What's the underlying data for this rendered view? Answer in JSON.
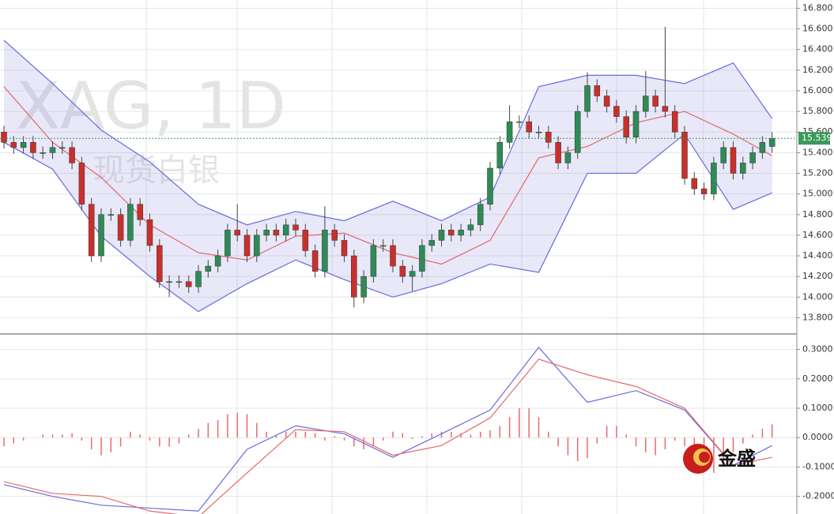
{
  "chart_data": [
    {
      "type": "candlestick",
      "watermark": "XAG, 1D",
      "watermark_sub": "现货白银",
      "up_color": "#2e8b57",
      "down_color": "#c9302c",
      "open": [
        15.6,
        15.5,
        15.45,
        15.5,
        15.4,
        15.4,
        15.45,
        15.45,
        15.3,
        14.9,
        14.4,
        14.8,
        14.8,
        14.55,
        14.9,
        14.75,
        14.5,
        14.15,
        14.15,
        14.15,
        14.1,
        14.25,
        14.3,
        14.4,
        14.65,
        14.6,
        14.4,
        14.6,
        14.65,
        14.6,
        14.7,
        14.65,
        14.45,
        14.25,
        14.65,
        14.55,
        14.4,
        14.0,
        14.2,
        14.5,
        14.5,
        14.3,
        14.2,
        14.25,
        14.5,
        14.55,
        14.65,
        14.6,
        14.65,
        14.7,
        14.9,
        15.25,
        15.5,
        15.7,
        15.7,
        15.6,
        15.6,
        15.5,
        15.3,
        15.4,
        15.8,
        16.05,
        15.95,
        15.85,
        15.75,
        15.55,
        15.8,
        15.95,
        15.85,
        15.8,
        15.6,
        15.15,
        15.05,
        15.0,
        15.3,
        15.45,
        15.2,
        15.3,
        15.4,
        15.46
      ],
      "high": [
        15.66,
        15.56,
        15.56,
        15.56,
        15.46,
        15.51,
        15.51,
        15.51,
        15.36,
        14.96,
        14.86,
        14.86,
        14.86,
        14.96,
        14.96,
        14.81,
        14.56,
        14.21,
        14.21,
        14.21,
        14.31,
        14.36,
        14.46,
        14.71,
        14.9,
        14.66,
        14.66,
        14.71,
        14.71,
        14.76,
        14.76,
        14.71,
        14.51,
        14.88,
        14.71,
        14.61,
        14.46,
        14.26,
        14.56,
        14.56,
        14.56,
        14.36,
        14.31,
        14.56,
        14.61,
        14.71,
        14.71,
        14.71,
        14.76,
        14.96,
        15.31,
        15.56,
        15.86,
        15.76,
        15.76,
        15.66,
        15.66,
        15.56,
        15.46,
        15.86,
        16.18,
        16.11,
        16.01,
        15.91,
        15.81,
        15.86,
        16.19,
        16.01,
        16.62,
        15.86,
        15.66,
        15.21,
        15.11,
        15.36,
        15.51,
        15.51,
        15.36,
        15.46,
        15.56,
        15.6
      ],
      "low": [
        15.44,
        15.39,
        15.39,
        15.34,
        15.34,
        15.34,
        15.39,
        15.24,
        14.84,
        14.34,
        14.34,
        14.74,
        14.49,
        14.49,
        14.69,
        14.44,
        14.09,
        14.0,
        14.09,
        14.04,
        14.04,
        14.19,
        14.24,
        14.34,
        14.54,
        14.34,
        14.34,
        14.54,
        14.54,
        14.54,
        14.59,
        14.39,
        14.19,
        14.19,
        14.49,
        14.34,
        13.9,
        13.94,
        14.14,
        14.44,
        14.24,
        14.14,
        14.06,
        14.19,
        14.44,
        14.49,
        14.54,
        14.54,
        14.59,
        14.64,
        14.84,
        15.19,
        15.44,
        15.64,
        15.54,
        15.54,
        15.44,
        15.24,
        15.24,
        15.34,
        15.74,
        15.89,
        15.79,
        15.69,
        15.49,
        15.49,
        15.74,
        15.79,
        15.74,
        15.54,
        15.09,
        14.99,
        14.94,
        14.94,
        15.24,
        15.14,
        15.14,
        15.24,
        15.34,
        15.4
      ],
      "close": [
        15.5,
        15.45,
        15.5,
        15.4,
        15.4,
        15.45,
        15.45,
        15.3,
        14.9,
        14.4,
        14.8,
        14.8,
        14.55,
        14.9,
        14.75,
        14.5,
        14.15,
        14.15,
        14.15,
        14.1,
        14.25,
        14.3,
        14.4,
        14.65,
        14.6,
        14.4,
        14.6,
        14.65,
        14.6,
        14.7,
        14.65,
        14.45,
        14.25,
        14.65,
        14.55,
        14.4,
        14.0,
        14.2,
        14.5,
        14.5,
        14.3,
        14.2,
        14.25,
        14.5,
        14.55,
        14.65,
        14.6,
        14.65,
        14.7,
        14.9,
        15.25,
        15.5,
        15.7,
        15.7,
        15.6,
        15.6,
        15.5,
        15.3,
        15.4,
        15.8,
        16.05,
        15.95,
        15.85,
        15.75,
        15.55,
        15.8,
        15.95,
        15.85,
        15.8,
        15.6,
        15.15,
        15.05,
        15.0,
        15.3,
        15.45,
        15.2,
        15.3,
        15.4,
        15.5,
        15.539
      ],
      "band_index": [
        0,
        5,
        10,
        15,
        20,
        25,
        30,
        35,
        40,
        45,
        50,
        55,
        60,
        65,
        70,
        75,
        79
      ],
      "band_upper": [
        16.49,
        16.07,
        15.62,
        15.31,
        14.9,
        14.7,
        14.83,
        14.74,
        14.93,
        14.74,
        14.97,
        16.04,
        16.15,
        16.15,
        16.07,
        16.27,
        15.73
      ],
      "band_middle": [
        16.04,
        15.5,
        15.16,
        14.7,
        14.43,
        14.36,
        14.59,
        14.62,
        14.43,
        14.32,
        14.55,
        15.35,
        15.46,
        15.69,
        15.8,
        15.58,
        15.37
      ],
      "band_lower": [
        15.5,
        15.24,
        14.59,
        14.2,
        13.86,
        14.13,
        14.36,
        14.17,
        14.0,
        14.13,
        14.32,
        14.24,
        15.2,
        15.2,
        15.58,
        14.85,
        15.01
      ],
      "band_color": "#6a6ae0",
      "middle_color": "#e06a6a",
      "ylim": [
        13.65,
        16.88
      ],
      "yticks": [
        {
          "value": 13.8,
          "label": "13.800"
        },
        {
          "value": 14.0,
          "label": "14.000"
        },
        {
          "value": 14.2,
          "label": "14.200"
        },
        {
          "value": 14.4,
          "label": "14.400"
        },
        {
          "value": 14.6,
          "label": "14.600"
        },
        {
          "value": 14.8,
          "label": "14.800"
        },
        {
          "value": 15.0,
          "label": "15.000"
        },
        {
          "value": 15.2,
          "label": "15.200"
        },
        {
          "value": 15.4,
          "label": "15.400"
        },
        {
          "value": 15.6,
          "label": "15.600"
        },
        {
          "value": 15.8,
          "label": "15.800"
        },
        {
          "value": 16.0,
          "label": "16.000"
        },
        {
          "value": 16.2,
          "label": "16.200"
        },
        {
          "value": 16.4,
          "label": "16.400"
        },
        {
          "value": 16.6,
          "label": "16.600"
        },
        {
          "value": 16.8,
          "label": "16.800"
        }
      ]
    },
    {
      "type": "macd",
      "logo_text": "金盛",
      "hist_color": "#e86a6a",
      "histogram": [
        -0.03,
        -0.02,
        -0.01,
        0,
        0.01,
        0.01,
        0.01,
        0.015,
        -0.01,
        -0.04,
        -0.06,
        -0.05,
        -0.03,
        0.02,
        0.01,
        -0.01,
        -0.03,
        -0.03,
        -0.02,
        0.01,
        0.03,
        0.05,
        0.06,
        0.08,
        0.085,
        0.08,
        0.05,
        0.02,
        0.01,
        0.02,
        0.02,
        0.02,
        0.015,
        -0.01,
        0.005,
        -0.01,
        -0.03,
        -0.04,
        -0.03,
        -0.01,
        0.02,
        0.015,
        -0.005,
        0.005,
        0.015,
        0.02,
        0.02,
        0.015,
        0.01,
        0.02,
        0.025,
        0.04,
        0.07,
        0.1,
        0.1,
        0.07,
        0.02,
        -0.03,
        -0.06,
        -0.08,
        -0.07,
        -0.02,
        0.04,
        0.04,
        0.01,
        -0.03,
        -0.05,
        -0.06,
        -0.04,
        -0.01,
        -0.03,
        -0.06,
        -0.1,
        -0.12,
        -0.1,
        -0.05,
        -0.02,
        0.01,
        0.03,
        0.045
      ],
      "line_index": [
        0,
        5,
        10,
        15,
        20,
        25,
        30,
        35,
        40,
        45,
        50,
        55,
        60,
        65,
        70,
        75,
        79
      ],
      "series": [
        {
          "color": "#6a6ae0",
          "values": [
            -0.16,
            -0.2,
            -0.23,
            -0.24,
            -0.25,
            -0.04,
            0.04,
            0.013,
            -0.067,
            0.013,
            0.094,
            0.307,
            0.12,
            0.16,
            0.094,
            -0.094,
            -0.027
          ]
        },
        {
          "color": "#e06a6a",
          "values": [
            -0.15,
            -0.19,
            -0.2,
            -0.25,
            -0.27,
            -0.12,
            0.027,
            0.02,
            -0.06,
            -0.027,
            0.067,
            0.267,
            0.214,
            0.174,
            0.1,
            -0.094,
            -0.067
          ]
        }
      ],
      "ylim": [
        -0.26,
        0.35
      ],
      "yticks": [
        {
          "value": -0.2,
          "label": "-0.2000"
        },
        {
          "value": -0.1,
          "label": "-0.1000"
        },
        {
          "value": 0,
          "label": "0.0000"
        },
        {
          "value": 0.1,
          "label": "0.1000"
        },
        {
          "value": 0.2,
          "label": "0.2000"
        },
        {
          "value": 0.3,
          "label": "0.3000"
        }
      ]
    }
  ]
}
